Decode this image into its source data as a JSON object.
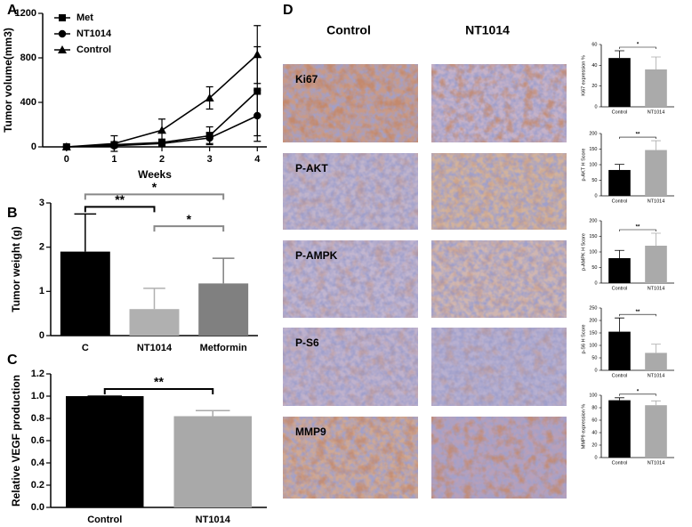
{
  "chart_data": [
    {
      "type": "line",
      "panel": "A",
      "ylabel": "Tumor volume(mm3)",
      "xlabel": "Weeks",
      "legend": "upper left",
      "x": [
        0,
        1,
        2,
        3,
        4
      ],
      "xlim": [
        -0.5,
        4.2
      ],
      "xticks": [
        0,
        1,
        2,
        3,
        4
      ],
      "ylim": [
        0,
        1200
      ],
      "yticks": [
        0,
        400,
        800,
        1200
      ],
      "series": [
        {
          "name": "Met",
          "marker": "square",
          "color": "#000000",
          "values": [
            0,
            20,
            40,
            100,
            500
          ],
          "errors": [
            0,
            10,
            30,
            80,
            400
          ]
        },
        {
          "name": "NT1014",
          "marker": "circle",
          "color": "#000000",
          "values": [
            0,
            10,
            30,
            80,
            280
          ],
          "errors": [
            0,
            10,
            20,
            50,
            230
          ]
        },
        {
          "name": "Control",
          "marker": "triangle",
          "color": "#000000",
          "values": [
            0,
            30,
            150,
            440,
            830
          ],
          "errors": [
            0,
            70,
            100,
            100,
            260
          ]
        }
      ]
    },
    {
      "type": "bar",
      "panel": "B",
      "ylabel": "Tumor weight (g)",
      "categories": [
        "C",
        "NT1014",
        "Metformin"
      ],
      "values": [
        1.9,
        0.6,
        1.18
      ],
      "errors": [
        0.85,
        0.47,
        0.57
      ],
      "colors": [
        "#000000",
        "#b0b0b0",
        "#808080"
      ],
      "ylim": [
        0,
        3
      ],
      "yticks": [
        0,
        1,
        2,
        3
      ],
      "annotations": [
        {
          "text": "**",
          "between": [
            "C",
            "NT1014"
          ],
          "color": "#000000"
        },
        {
          "text": "*",
          "between": [
            "C",
            "Metformin"
          ],
          "color": "#888888"
        },
        {
          "text": "*",
          "between": [
            "NT1014",
            "Metformin"
          ],
          "color": "#888888"
        }
      ]
    },
    {
      "type": "bar",
      "panel": "C",
      "ylabel": "Relative VEGF production",
      "categories": [
        "Control",
        "NT1014"
      ],
      "values": [
        1.0,
        0.82
      ],
      "errors": [
        0,
        0.05
      ],
      "colors": [
        "#000000",
        "#a9a9a9"
      ],
      "ylim": [
        0,
        1.2
      ],
      "yticks": [
        {
          "value": 0,
          "label": "0.0"
        },
        0.2,
        0.4,
        0.6,
        0.8,
        {
          "value": 1,
          "label": "1.0"
        },
        1.2
      ],
      "annotations": [
        {
          "text": "**",
          "between": [
            "Control",
            "NT1014"
          ],
          "color": "#000000"
        }
      ]
    },
    {
      "type": "bar",
      "stain": "Ki67",
      "ylabel": "Ki67 expression %",
      "categories": [
        "Control",
        "NT1014"
      ],
      "values": [
        47,
        36
      ],
      "errors": [
        7,
        12
      ],
      "colors": [
        "#000000",
        "#aaaaaa"
      ],
      "ylim": [
        0,
        60
      ],
      "yticks": [
        0,
        20,
        40,
        60
      ],
      "annotations": [
        {
          "text": "*",
          "between": [
            "Control",
            "NT1014"
          ],
          "color": "#000000"
        }
      ]
    },
    {
      "type": "bar",
      "stain": "P-AKT",
      "ylabel": "p-AKT H Score",
      "categories": [
        "Control",
        "NT1014"
      ],
      "values": [
        83,
        147
      ],
      "errors": [
        18,
        30
      ],
      "colors": [
        "#000000",
        "#aaaaaa"
      ],
      "ylim": [
        0,
        200
      ],
      "yticks": [
        0,
        50,
        100,
        150,
        200
      ],
      "annotations": [
        {
          "text": "**",
          "between": [
            "Control",
            "NT1014"
          ],
          "color": "#000000"
        }
      ]
    },
    {
      "type": "bar",
      "stain": "P-AMPK",
      "ylabel": "p-AMPK H Score",
      "categories": [
        "Control",
        "NT1014"
      ],
      "values": [
        80,
        120
      ],
      "errors": [
        25,
        40
      ],
      "colors": [
        "#000000",
        "#aaaaaa"
      ],
      "ylim": [
        0,
        200
      ],
      "yticks": [
        0,
        50,
        100,
        150,
        200
      ],
      "annotations": [
        {
          "text": "**",
          "between": [
            "Control",
            "NT1014"
          ],
          "color": "#000000"
        }
      ]
    },
    {
      "type": "bar",
      "stain": "P-S6",
      "ylabel": "p-S6 H Score",
      "categories": [
        "Control",
        "NT1014"
      ],
      "values": [
        155,
        70
      ],
      "errors": [
        55,
        35
      ],
      "colors": [
        "#000000",
        "#aaaaaa"
      ],
      "ylim": [
        0,
        250
      ],
      "yticks": [
        0,
        50,
        100,
        150,
        200,
        250
      ],
      "annotations": [
        {
          "text": "**",
          "between": [
            "Control",
            "NT1014"
          ],
          "color": "#000000"
        }
      ]
    },
    {
      "type": "bar",
      "stain": "MMP9",
      "ylabel": "MMP9 expression %",
      "categories": [
        "Control",
        "NT1014"
      ],
      "values": [
        92,
        84
      ],
      "errors": [
        4,
        7
      ],
      "colors": [
        "#000000",
        "#aaaaaa"
      ],
      "ylim": [
        0,
        100
      ],
      "yticks": [
        0,
        20,
        40,
        60,
        80,
        100
      ],
      "annotations": [
        {
          "text": "*",
          "between": [
            "Control",
            "NT1014"
          ],
          "color": "#000000"
        }
      ]
    }
  ],
  "panel_d": {
    "label": "D",
    "columns": [
      "Control",
      "NT1014"
    ]
  }
}
